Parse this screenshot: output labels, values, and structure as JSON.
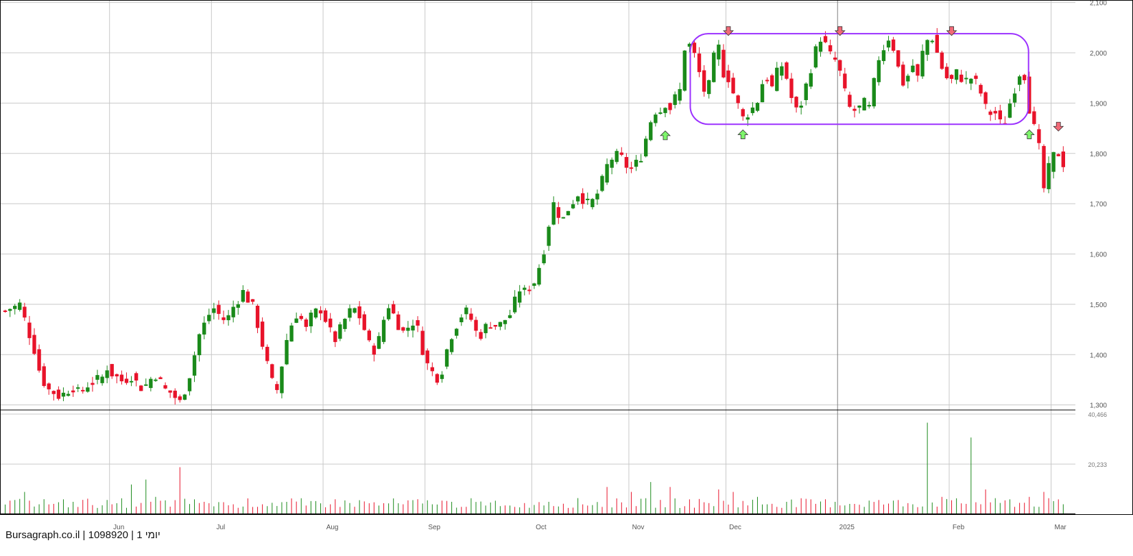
{
  "watermark": "Bursagraph.co.il | 1098920 | 1 יומי",
  "colors": {
    "up": "#1a8a1a",
    "down": "#e8132a",
    "grid": "#c8c8c8",
    "frame": "#000000",
    "pattern": "#9b30ff",
    "arrow_up": "#7ef56b",
    "arrow_down": "#f26a78"
  },
  "chart_data": {
    "type": "candlestick",
    "price_axis": {
      "ylim": [
        1290,
        2105
      ],
      "ticks": [
        "1,300",
        "1,400",
        "1,500",
        "1,600",
        "1,700",
        "1,800",
        "1,900",
        "2,000",
        "2,100"
      ],
      "tick_values": [
        1300,
        1400,
        1500,
        1600,
        1700,
        1800,
        1900,
        2000,
        2100
      ]
    },
    "volume_axis": {
      "ylim": [
        0,
        40466
      ],
      "ticks": [
        "20,233",
        "40,466"
      ],
      "tick_values": [
        20233,
        40466
      ]
    },
    "x_labels": [
      {
        "label": "Jun",
        "index": 22
      },
      {
        "label": "Jul",
        "index": 43
      },
      {
        "label": "Aug",
        "index": 66
      },
      {
        "label": "Sep",
        "index": 87
      },
      {
        "label": "Oct",
        "index": 109
      },
      {
        "label": "Nov",
        "index": 129
      },
      {
        "label": "Dec",
        "index": 149
      },
      {
        "label": "2025",
        "index": 172
      },
      {
        "label": "Feb",
        "index": 195
      },
      {
        "label": "Mar",
        "index": 216
      }
    ],
    "anchor_points": [
      [
        0,
        1487
      ],
      [
        1,
        1492
      ],
      [
        2,
        1495
      ],
      [
        3,
        1500
      ],
      [
        4,
        1470
      ],
      [
        5,
        1440
      ],
      [
        6,
        1410
      ],
      [
        7,
        1370
      ],
      [
        8,
        1345
      ],
      [
        9,
        1330
      ],
      [
        10,
        1325
      ],
      [
        11,
        1318
      ],
      [
        12,
        1322
      ],
      [
        13,
        1330
      ],
      [
        14,
        1335
      ],
      [
        15,
        1325
      ],
      [
        16,
        1330
      ],
      [
        17,
        1340
      ],
      [
        18,
        1345
      ],
      [
        19,
        1350
      ],
      [
        20,
        1355
      ],
      [
        21,
        1375
      ],
      [
        22,
        1362
      ],
      [
        23,
        1355
      ],
      [
        24,
        1348
      ],
      [
        25,
        1352
      ],
      [
        26,
        1358
      ],
      [
        27,
        1345
      ],
      [
        28,
        1335
      ],
      [
        29,
        1340
      ],
      [
        30,
        1352
      ],
      [
        31,
        1360
      ],
      [
        32,
        1345
      ],
      [
        33,
        1330
      ],
      [
        34,
        1325
      ],
      [
        35,
        1315
      ],
      [
        36,
        1305
      ],
      [
        37,
        1330
      ],
      [
        38,
        1360
      ],
      [
        39,
        1400
      ],
      [
        40,
        1440
      ],
      [
        41,
        1460
      ],
      [
        42,
        1480
      ],
      [
        43,
        1492
      ],
      [
        44,
        1480
      ],
      [
        45,
        1470
      ],
      [
        46,
        1475
      ],
      [
        47,
        1495
      ],
      [
        48,
        1510
      ],
      [
        49,
        1525
      ],
      [
        50,
        1510
      ],
      [
        51,
        1495
      ],
      [
        52,
        1460
      ],
      [
        53,
        1420
      ],
      [
        54,
        1380
      ],
      [
        55,
        1345
      ],
      [
        56,
        1330
      ],
      [
        57,
        1380
      ],
      [
        58,
        1430
      ],
      [
        59,
        1460
      ],
      [
        60,
        1480
      ],
      [
        61,
        1470
      ],
      [
        62,
        1450
      ],
      [
        63,
        1475
      ],
      [
        64,
        1485
      ],
      [
        65,
        1490
      ],
      [
        66,
        1470
      ],
      [
        67,
        1445
      ],
      [
        68,
        1430
      ],
      [
        69,
        1450
      ],
      [
        70,
        1470
      ],
      [
        71,
        1485
      ],
      [
        72,
        1490
      ],
      [
        73,
        1475
      ],
      [
        74,
        1450
      ],
      [
        75,
        1420
      ],
      [
        76,
        1410
      ],
      [
        77,
        1430
      ],
      [
        78,
        1470
      ],
      [
        79,
        1498
      ],
      [
        80,
        1480
      ],
      [
        81,
        1460
      ],
      [
        82,
        1445
      ],
      [
        83,
        1455
      ],
      [
        84,
        1465
      ],
      [
        85,
        1450
      ],
      [
        86,
        1410
      ],
      [
        87,
        1380
      ],
      [
        88,
        1365
      ],
      [
        89,
        1355
      ],
      [
        90,
        1370
      ],
      [
        91,
        1410
      ],
      [
        92,
        1440
      ],
      [
        93,
        1460
      ],
      [
        94,
        1478
      ],
      [
        95,
        1485
      ],
      [
        96,
        1470
      ],
      [
        97,
        1445
      ],
      [
        98,
        1440
      ],
      [
        99,
        1455
      ],
      [
        100,
        1462
      ],
      [
        101,
        1458
      ],
      [
        102,
        1460
      ],
      [
        103,
        1470
      ],
      [
        104,
        1480
      ],
      [
        105,
        1505
      ],
      [
        106,
        1530
      ],
      [
        107,
        1525
      ],
      [
        108,
        1535
      ],
      [
        109,
        1545
      ],
      [
        110,
        1575
      ],
      [
        111,
        1610
      ],
      [
        112,
        1660
      ],
      [
        113,
        1700
      ],
      [
        114,
        1680
      ],
      [
        115,
        1670
      ],
      [
        116,
        1690
      ],
      [
        117,
        1705
      ],
      [
        118,
        1720
      ],
      [
        119,
        1710
      ],
      [
        120,
        1700
      ],
      [
        121,
        1705
      ],
      [
        122,
        1720
      ],
      [
        123,
        1745
      ],
      [
        124,
        1775
      ],
      [
        125,
        1790
      ],
      [
        126,
        1795
      ],
      [
        127,
        1790
      ],
      [
        128,
        1775
      ],
      [
        129,
        1770
      ],
      [
        130,
        1780
      ],
      [
        131,
        1795
      ],
      [
        132,
        1830
      ],
      [
        133,
        1865
      ],
      [
        134,
        1885
      ],
      [
        135,
        1885
      ],
      [
        136,
        1900
      ],
      [
        137,
        1890
      ],
      [
        138,
        1910
      ],
      [
        139,
        1925
      ],
      [
        140,
        2010
      ],
      [
        141,
        2015
      ],
      [
        142,
        1995
      ],
      [
        143,
        1960
      ],
      [
        144,
        1925
      ],
      [
        145,
        1935
      ],
      [
        146,
        1990
      ],
      [
        147,
        2010
      ],
      [
        148,
        1960
      ],
      [
        149,
        1950
      ],
      [
        150,
        1920
      ],
      [
        151,
        1895
      ],
      [
        152,
        1870
      ],
      [
        153,
        1880
      ],
      [
        154,
        1890
      ],
      [
        155,
        1905
      ],
      [
        156,
        1940
      ],
      [
        157,
        1950
      ],
      [
        158,
        1930
      ],
      [
        159,
        1960
      ],
      [
        160,
        1975
      ],
      [
        161,
        1950
      ],
      [
        162,
        1910
      ],
      [
        163,
        1885
      ],
      [
        164,
        1900
      ],
      [
        165,
        1935
      ],
      [
        166,
        1970
      ],
      [
        167,
        2005
      ],
      [
        168,
        2030
      ],
      [
        169,
        2015
      ],
      [
        170,
        1995
      ],
      [
        171,
        1985
      ],
      [
        172,
        1960
      ],
      [
        173,
        1920
      ],
      [
        174,
        1890
      ],
      [
        175,
        1885
      ],
      [
        176,
        1890
      ],
      [
        177,
        1900
      ],
      [
        178,
        1890
      ],
      [
        179,
        1940
      ],
      [
        180,
        1990
      ],
      [
        181,
        2010
      ],
      [
        182,
        2030
      ],
      [
        183,
        2010
      ],
      [
        184,
        1970
      ],
      [
        185,
        1940
      ],
      [
        186,
        1955
      ],
      [
        187,
        1975
      ],
      [
        188,
        1950
      ],
      [
        189,
        2000
      ],
      [
        190,
        2025
      ],
      [
        191,
        2030
      ],
      [
        192,
        2000
      ],
      [
        193,
        1970
      ],
      [
        194,
        1950
      ],
      [
        195,
        1945
      ],
      [
        196,
        1960
      ],
      [
        197,
        1950
      ],
      [
        198,
        1945
      ],
      [
        199,
        1950
      ],
      [
        200,
        1940
      ],
      [
        201,
        1920
      ],
      [
        202,
        1890
      ],
      [
        203,
        1880
      ],
      [
        204,
        1880
      ],
      [
        205,
        1860
      ],
      [
        206,
        1865
      ],
      [
        207,
        1900
      ],
      [
        208,
        1930
      ],
      [
        209,
        1960
      ],
      [
        210,
        1955
      ],
      [
        211,
        1890
      ],
      [
        212,
        1850
      ],
      [
        213,
        1810
      ],
      [
        214,
        1730
      ],
      [
        215,
        1770
      ],
      [
        216,
        1795
      ],
      [
        217,
        1800
      ],
      [
        218,
        1780
      ]
    ],
    "volume_points": [
      [
        4,
        9000
      ],
      [
        7,
        4000
      ],
      [
        12,
        6000
      ],
      [
        14,
        5000
      ],
      [
        22,
        4000
      ],
      [
        26,
        12000
      ],
      [
        29,
        14000
      ],
      [
        31,
        7000
      ],
      [
        36,
        19000
      ],
      [
        39,
        6000
      ],
      [
        41,
        5000
      ],
      [
        47,
        4000
      ],
      [
        53,
        4000
      ],
      [
        58,
        5000
      ],
      [
        62,
        3500
      ],
      [
        67,
        4000
      ],
      [
        72,
        3000
      ],
      [
        77,
        3500
      ],
      [
        82,
        4000
      ],
      [
        88,
        4000
      ],
      [
        92,
        5000
      ],
      [
        99,
        3500
      ],
      [
        104,
        3500
      ],
      [
        107,
        4500
      ],
      [
        112,
        5000
      ],
      [
        118,
        6500
      ],
      [
        124,
        11000
      ],
      [
        129,
        9000
      ],
      [
        133,
        13000
      ],
      [
        137,
        11000
      ],
      [
        141,
        6000
      ],
      [
        147,
        10000
      ],
      [
        150,
        9000
      ],
      [
        155,
        7000
      ],
      [
        161,
        5000
      ],
      [
        166,
        6000
      ],
      [
        171,
        5000
      ],
      [
        178,
        5500
      ],
      [
        183,
        5500
      ],
      [
        187,
        4000
      ],
      [
        190,
        37000
      ],
      [
        193,
        7000
      ],
      [
        199,
        31000
      ],
      [
        202,
        10000
      ],
      [
        207,
        6000
      ],
      [
        211,
        7000
      ],
      [
        214,
        9000
      ],
      [
        219,
        3000
      ]
    ],
    "pattern_box": {
      "x_start_index": 142,
      "x_end_index": 210,
      "y_top": 2038,
      "y_bottom": 1858
    },
    "peak_markers": [
      {
        "index": 149,
        "value": 2048
      },
      {
        "index": 172,
        "value": 2048
      },
      {
        "index": 195,
        "value": 2048
      },
      {
        "index": 217,
        "value": 1858
      }
    ],
    "trough_markers": [
      {
        "index": 136,
        "value": 1838
      },
      {
        "index": 152,
        "value": 1840
      },
      {
        "index": 211,
        "value": 1840
      }
    ]
  }
}
